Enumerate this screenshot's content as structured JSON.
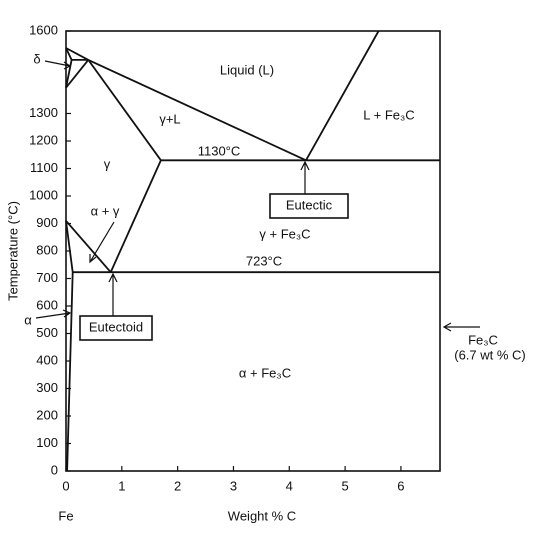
{
  "chart_data": {
    "type": "line",
    "xlabel": "Weight % C",
    "ylabel": "Temperature (°C)",
    "xlim": [
      0,
      6.7
    ],
    "ylim": [
      0,
      1600
    ],
    "xticks": [
      0,
      1,
      2,
      3,
      4,
      5,
      6
    ],
    "yticks": [
      0,
      100,
      200,
      300,
      400,
      500,
      600,
      700,
      800,
      900,
      1000,
      1100,
      1200,
      1300,
      1600
    ],
    "color": "#111111",
    "lines": [
      {
        "x": [
          0,
          0.4,
          4.3
        ],
        "y": [
          1538,
          1495,
          1130
        ]
      },
      {
        "x": [
          4.3,
          5.6
        ],
        "y": [
          1130,
          1600
        ]
      },
      {
        "x": [
          1.7,
          6.7
        ],
        "y": [
          1130,
          1130
        ]
      },
      {
        "x": [
          0.4,
          1.7
        ],
        "y": [
          1495,
          1130
        ]
      },
      {
        "x": [
          1.7,
          0.8
        ],
        "y": [
          1130,
          723
        ]
      },
      {
        "x": [
          0.12,
          6.7
        ],
        "y": [
          723,
          723
        ]
      },
      {
        "x": [
          0,
          0.8
        ],
        "y": [
          910,
          723
        ]
      },
      {
        "x": [
          0,
          0.12,
          0.02
        ],
        "y": [
          910,
          723,
          0
        ]
      },
      {
        "x": [
          0,
          0.1,
          0.4
        ],
        "y": [
          1538,
          1495,
          1495
        ]
      },
      {
        "x": [
          0.1,
          0
        ],
        "y": [
          1495,
          1394
        ]
      },
      {
        "x": [
          0.4,
          0
        ],
        "y": [
          1495,
          1394
        ]
      }
    ],
    "annotations": [
      "δ",
      "Liquid (L)",
      "L + Fe₃C",
      "γ+L",
      "γ",
      "1130°C",
      "Eutectic",
      "γ + Fe₃C",
      "α + γ",
      "723°C",
      "α",
      "Eutectoid",
      "Fe₃C",
      "(6.7 wt % C)",
      "α + Fe₃C",
      "Fe"
    ]
  }
}
